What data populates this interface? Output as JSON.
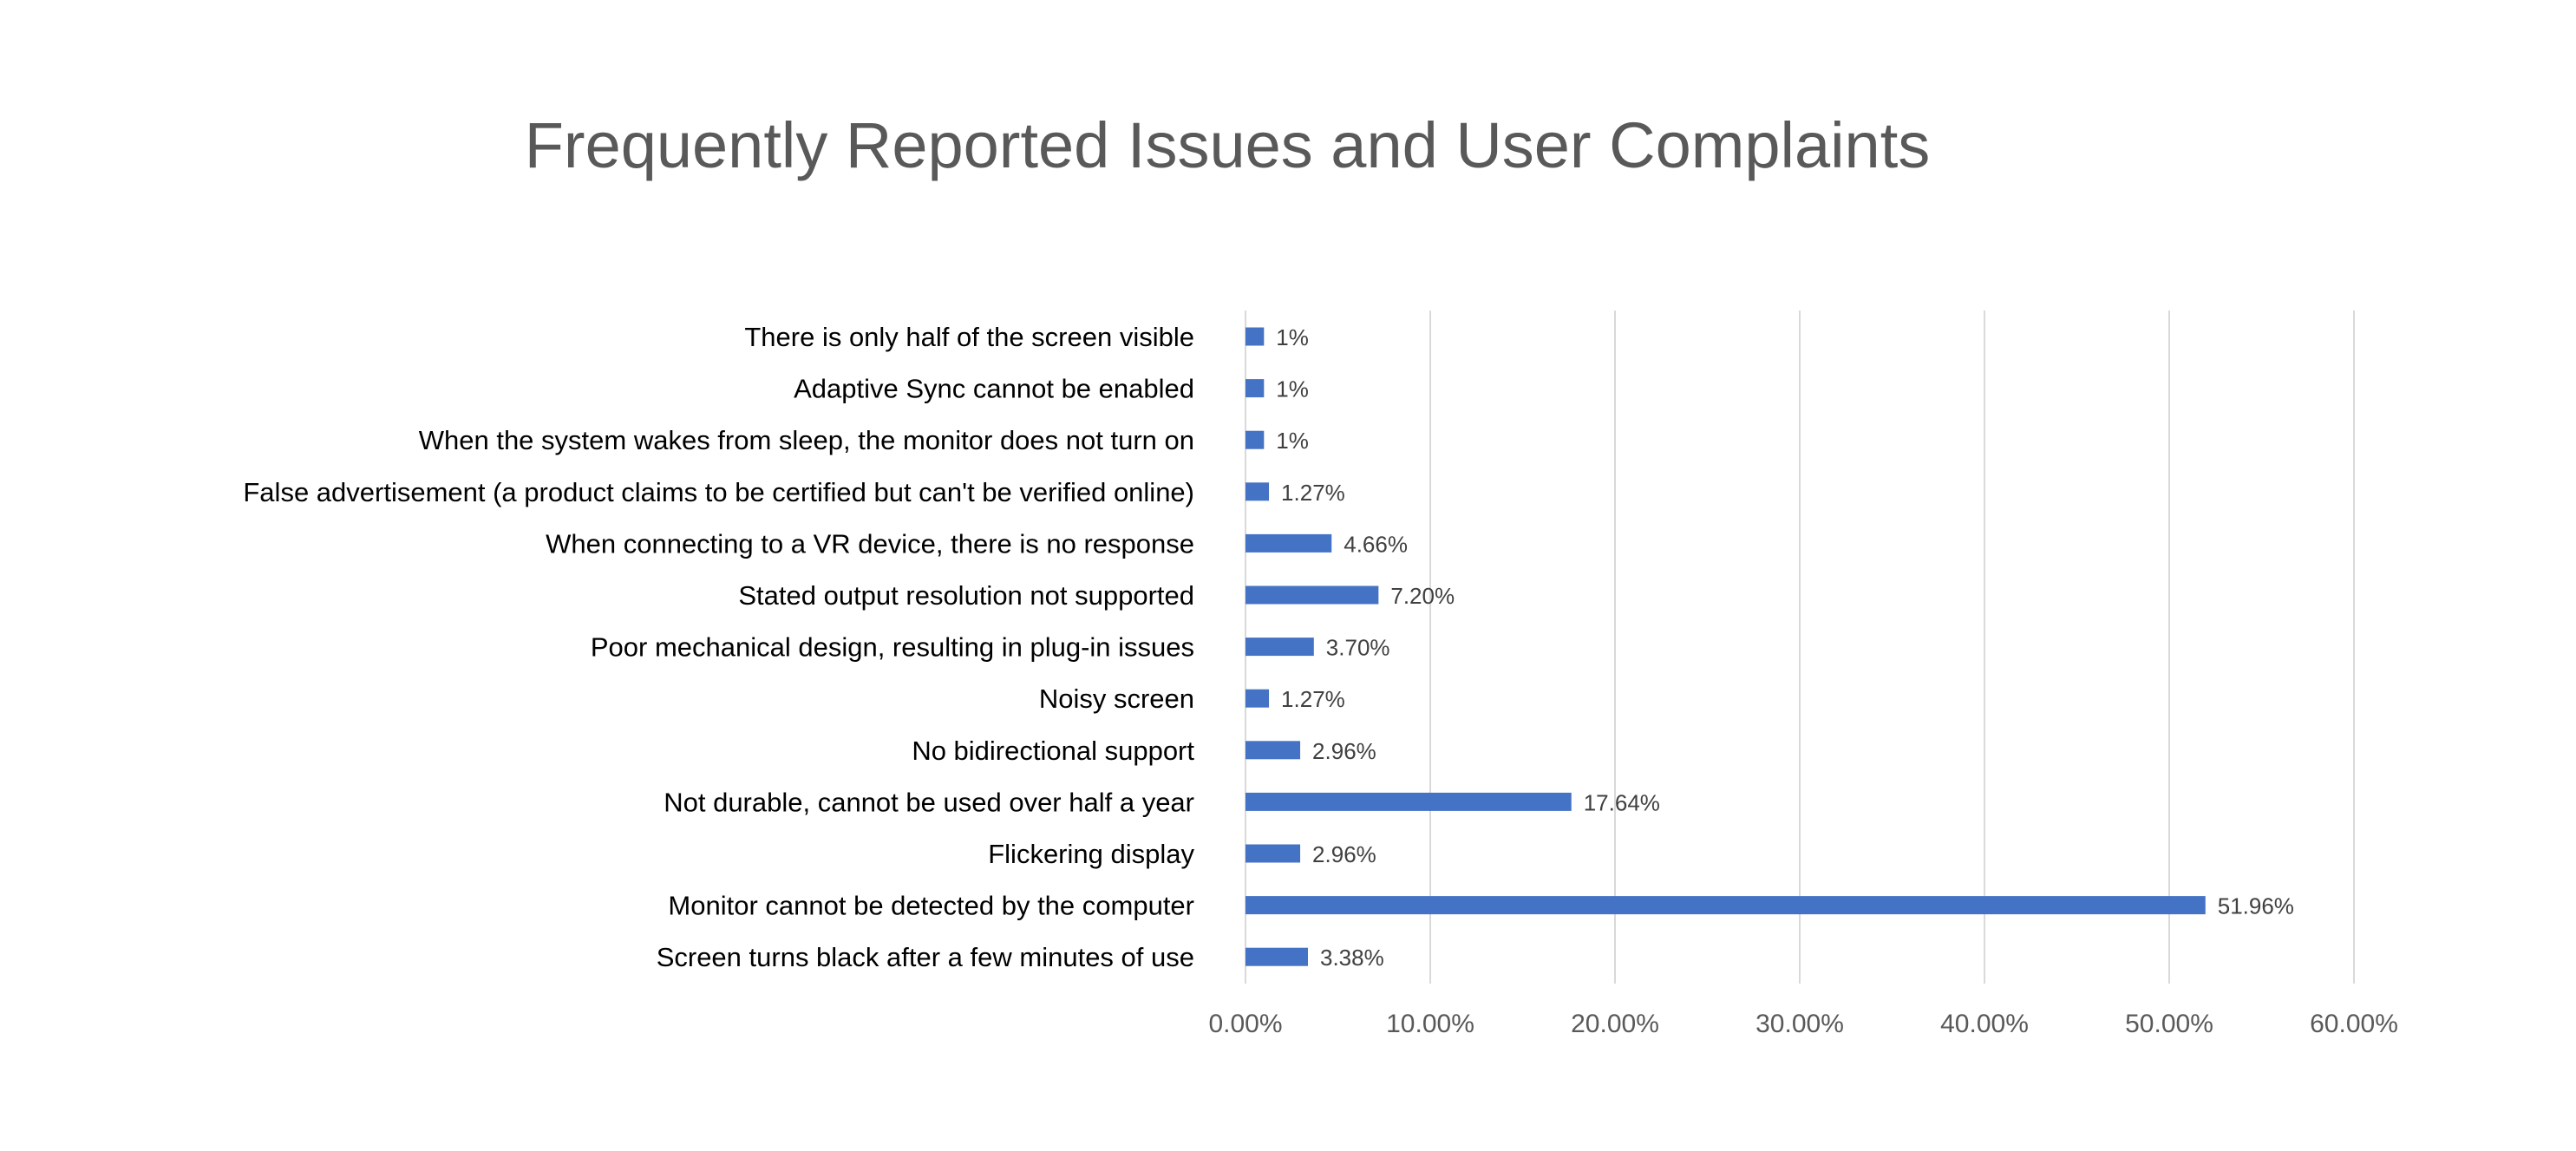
{
  "chart_data": {
    "type": "bar",
    "orientation": "horizontal",
    "title": "Frequently Reported Issues and User Complaints",
    "xlabel": "",
    "ylabel": "",
    "xlim": [
      0,
      60
    ],
    "x_ticks": [
      0,
      10,
      20,
      30,
      40,
      50,
      60
    ],
    "x_tick_labels": [
      "0.00%",
      "10.00%",
      "20.00%",
      "30.00%",
      "40.00%",
      "50.00%",
      "60.00%"
    ],
    "grid": true,
    "legend": "none",
    "bar_color": "#4472C4",
    "categories": [
      "There is only half of the screen visible",
      "Adaptive Sync cannot be enabled",
      "When the system wakes from sleep, the monitor does not turn on",
      "False advertisement (a product claims to be certified but can't be verified online)",
      "When connecting to a VR device, there is no response",
      "Stated output resolution not supported",
      "Poor mechanical design, resulting in plug-in issues",
      "Noisy screen",
      "No bidirectional support",
      "Not durable, cannot be used over half a year",
      "Flickering display",
      "Monitor cannot be detected by the computer",
      "Screen turns black after a few minutes of use"
    ],
    "values": [
      1,
      1,
      1,
      1.27,
      4.66,
      7.2,
      3.7,
      1.27,
      2.96,
      17.64,
      2.96,
      51.96,
      3.38
    ],
    "data_labels": [
      "1%",
      "1%",
      "1%",
      "1.27%",
      "4.66%",
      "7.20%",
      "3.70%",
      "1.27%",
      "2.96%",
      "17.64%",
      "2.96%",
      "51.96%",
      "3.38%"
    ]
  }
}
